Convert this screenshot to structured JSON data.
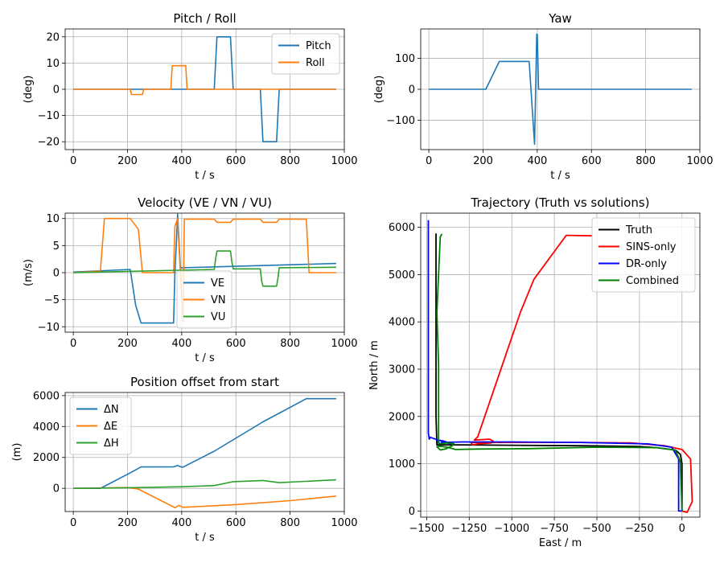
{
  "chart_data": [
    {
      "id": "pitch_roll",
      "type": "line",
      "title": "Pitch / Roll",
      "xlabel": "t / s",
      "ylabel": "(deg)",
      "xlim": [
        -30,
        1000
      ],
      "ylim": [
        -23,
        23
      ],
      "xticks": [
        0,
        200,
        400,
        600,
        800,
        1000
      ],
      "yticks": [
        -20,
        -10,
        0,
        10,
        20
      ],
      "legend": "top-right",
      "grid": true,
      "series": [
        {
          "name": "Pitch",
          "color": "#1f77b4",
          "x": [
            0,
            200,
            210,
            360,
            370,
            520,
            530,
            580,
            590,
            690,
            700,
            750,
            760,
            970
          ],
          "y": [
            0,
            0,
            0,
            0,
            0,
            0,
            20,
            20,
            0,
            0,
            -20,
            -20,
            0,
            0
          ]
        },
        {
          "name": "Roll",
          "color": "#ff7f0e",
          "x": [
            0,
            210,
            215,
            255,
            260,
            360,
            365,
            415,
            420,
            970
          ],
          "y": [
            0,
            0,
            -2,
            -2,
            0,
            0,
            9,
            9,
            0,
            0
          ]
        }
      ]
    },
    {
      "id": "yaw",
      "type": "line",
      "title": "Yaw",
      "xlabel": "t / s",
      "ylabel": "(deg)",
      "xlim": [
        -30,
        1000
      ],
      "ylim": [
        -195,
        195
      ],
      "xticks": [
        0,
        200,
        400,
        600,
        800,
        1000
      ],
      "yticks": [
        -100,
        0,
        100
      ],
      "grid": true,
      "series": [
        {
          "name": "",
          "color": "#1f77b4",
          "x": [
            0,
            210,
            260,
            370,
            390,
            398,
            400,
            405,
            970
          ],
          "y": [
            0,
            0,
            90,
            90,
            -178,
            178,
            178,
            0,
            0
          ]
        }
      ]
    },
    {
      "id": "velocity",
      "type": "line",
      "title": "Velocity (VE / VN / VU)",
      "xlabel": "t / s",
      "ylabel": "(m/s)",
      "xlim": [
        -30,
        1000
      ],
      "ylim": [
        -11,
        11
      ],
      "xticks": [
        0,
        200,
        400,
        600,
        800,
        1000
      ],
      "yticks": [
        -10,
        -5,
        0,
        5,
        10
      ],
      "legend": "lower-center",
      "grid": true,
      "series": [
        {
          "name": "VE",
          "color": "#1f77b4",
          "x": [
            0,
            210,
            230,
            250,
            370,
            375,
            380,
            385,
            395,
            405,
            970
          ],
          "y": [
            0.1,
            0.6,
            -6,
            -9.3,
            -9.3,
            0,
            5,
            10.8,
            0.9,
            0.9,
            1.7
          ]
        },
        {
          "name": "VN",
          "color": "#ff7f0e",
          "x": [
            0,
            100,
            115,
            210,
            240,
            255,
            370,
            375,
            385,
            395,
            405,
            410,
            520,
            530,
            580,
            590,
            690,
            700,
            750,
            760,
            860,
            870,
            970
          ],
          "y": [
            0,
            0.3,
            10,
            10,
            8,
            0,
            0,
            8.5,
            10,
            0,
            -9,
            9.9,
            9.9,
            9.3,
            9.3,
            9.9,
            9.9,
            9.3,
            9.3,
            9.9,
            9.9,
            0,
            0
          ]
        },
        {
          "name": "VU",
          "color": "#2ca02c",
          "x": [
            0,
            520,
            525,
            530,
            580,
            585,
            590,
            690,
            695,
            700,
            750,
            755,
            760,
            970
          ],
          "y": [
            0,
            0.6,
            2.5,
            4,
            4,
            2,
            0.7,
            0.7,
            -1.5,
            -2.5,
            -2.5,
            -1,
            0.9,
            1
          ]
        }
      ]
    },
    {
      "id": "position_offset",
      "type": "line",
      "title": "Position offset from start",
      "xlabel": "t / s",
      "ylabel": "(m)",
      "xlim": [
        -30,
        1000
      ],
      "ylim": [
        -1500,
        6200
      ],
      "xticks": [
        0,
        200,
        400,
        600,
        800,
        1000
      ],
      "yticks": [
        0,
        2000,
        4000,
        6000
      ],
      "legend": "top-left",
      "grid": true,
      "series": [
        {
          "name": "ΔN",
          "color": "#1f77b4",
          "x": [
            0,
            100,
            210,
            250,
            370,
            385,
            395,
            405,
            520,
            700,
            860,
            970
          ],
          "y": [
            0,
            0,
            1000,
            1380,
            1390,
            1480,
            1400,
            1370,
            2400,
            4300,
            5800,
            5800
          ]
        },
        {
          "name": "ΔE",
          "color": "#ff7f0e",
          "x": [
            0,
            200,
            240,
            375,
            390,
            405,
            600,
            800,
            970
          ],
          "y": [
            0,
            50,
            -50,
            -1250,
            -1100,
            -1230,
            -1050,
            -800,
            -500
          ]
        },
        {
          "name": "ΔH",
          "color": "#2ca02c",
          "x": [
            0,
            200,
            400,
            520,
            590,
            700,
            760,
            970
          ],
          "y": [
            0,
            40,
            100,
            180,
            430,
            510,
            370,
            550
          ]
        }
      ]
    },
    {
      "id": "trajectory",
      "type": "line",
      "title": "Trajectory (Truth vs solutions)",
      "xlabel": "East / m",
      "ylabel": "North / m",
      "xlim": [
        -1535,
        105
      ],
      "ylim": [
        -130,
        6300
      ],
      "xticks": [
        -1500,
        -1250,
        -1000,
        -750,
        -500,
        -250,
        0
      ],
      "yticks": [
        0,
        1000,
        2000,
        3000,
        4000,
        5000,
        6000
      ],
      "xtick_labels": [
        "−1500",
        "−1250",
        "−1000",
        "−750",
        "−500",
        "−250",
        "0"
      ],
      "legend": "top-right",
      "grid": true,
      "series": [
        {
          "name": "Truth",
          "color": "#000000",
          "x": [
            0,
            0,
            -10,
            -40,
            -150,
            -250,
            -600,
            -1000,
            -1300,
            -1400,
            -1440,
            -1445,
            -1445
          ],
          "y": [
            0,
            1000,
            1200,
            1290,
            1340,
            1365,
            1380,
            1390,
            1400,
            1400,
            1400,
            2000,
            5870
          ]
        },
        {
          "name": "SINS-only",
          "color": "#ff0000",
          "x": [
            0,
            30,
            60,
            50,
            0,
            -100,
            -300,
            -600,
            -1000,
            -1240,
            -1230,
            -1200,
            -1120,
            -1110,
            -1130,
            -1220,
            -1200,
            -950,
            -870,
            -680,
            -530
          ],
          "y": [
            0,
            -30,
            200,
            1100,
            1300,
            1380,
            1440,
            1450,
            1450,
            1450,
            1400,
            1420,
            1440,
            1480,
            1520,
            1500,
            1570,
            4200,
            4900,
            5830,
            5820
          ]
        },
        {
          "name": "DR-only",
          "color": "#0000ff",
          "x": [
            0,
            -20,
            -20,
            -60,
            -200,
            -600,
            -1000,
            -1300,
            -1410,
            -1420,
            -1440,
            -1430,
            -1400,
            -1370,
            -1360,
            -1390,
            -1480,
            -1485,
            -1490,
            -1490
          ],
          "y": [
            0,
            0,
            1100,
            1350,
            1420,
            1450,
            1460,
            1460,
            1450,
            1420,
            1480,
            1500,
            1480,
            1440,
            1420,
            1450,
            1560,
            1520,
            1650,
            6150
          ]
        },
        {
          "name": "Combined",
          "color": "#008000",
          "x": [
            0,
            -10,
            -40,
            -150,
            -500,
            -900,
            -1200,
            -1330,
            -1380,
            -1420,
            -1440,
            -1420,
            -1390,
            -1350,
            -1340,
            -1380,
            -1430,
            -1430,
            -1440,
            -1420,
            -1410
          ],
          "y": [
            0,
            1050,
            1290,
            1340,
            1350,
            1320,
            1310,
            1300,
            1350,
            1370,
            1360,
            1290,
            1310,
            1380,
            1420,
            1440,
            1420,
            3100,
            4200,
            5800,
            5860
          ]
        }
      ]
    }
  ]
}
